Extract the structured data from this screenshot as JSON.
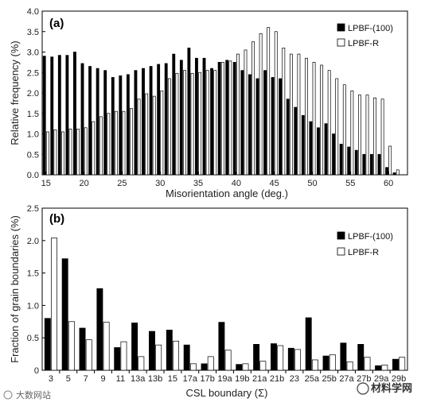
{
  "chart_data": [
    {
      "type": "bar",
      "panel_label": "(a)",
      "xlabel": "Misorientation angle (deg.)",
      "ylabel": "Relative frequency (%)",
      "xlim": [
        14.5,
        62.5
      ],
      "ylim": [
        0,
        4.0
      ],
      "x_ticks": [
        15,
        20,
        25,
        30,
        35,
        40,
        45,
        50,
        55,
        60
      ],
      "y_ticks": [
        "0.0",
        "0.5",
        "1.0",
        "1.5",
        "2.0",
        "2.5",
        "3.0",
        "3.5",
        "4.0"
      ],
      "x": [
        15,
        16,
        17,
        18,
        19,
        20,
        21,
        22,
        23,
        24,
        25,
        26,
        27,
        28,
        29,
        30,
        31,
        32,
        33,
        34,
        35,
        36,
        37,
        38,
        39,
        40,
        41,
        42,
        43,
        44,
        45,
        46,
        47,
        48,
        49,
        50,
        51,
        52,
        53,
        54,
        55,
        56,
        57,
        58,
        59,
        60,
        61,
        62
      ],
      "legend_position": "top-right",
      "series": [
        {
          "name": "LPBF-(100)",
          "color": "#000000",
          "values": [
            2.9,
            2.88,
            2.92,
            2.92,
            3.0,
            2.72,
            2.65,
            2.6,
            2.55,
            2.38,
            2.42,
            2.45,
            2.55,
            2.6,
            2.65,
            2.7,
            2.72,
            2.95,
            2.8,
            3.1,
            2.85,
            2.85,
            2.6,
            2.75,
            2.8,
            2.75,
            2.55,
            2.45,
            2.35,
            2.55,
            2.38,
            2.35,
            1.85,
            1.65,
            1.45,
            1.3,
            1.15,
            1.25,
            1.0,
            0.75,
            0.68,
            0.6,
            0.5,
            0.5,
            0.5,
            0.18,
            0.05,
            0.0
          ]
        },
        {
          "name": "LPBF-R",
          "color": "#ffffff",
          "values": [
            1.05,
            1.1,
            1.05,
            1.12,
            1.12,
            1.15,
            1.3,
            1.42,
            1.5,
            1.55,
            1.55,
            1.62,
            1.85,
            1.98,
            1.92,
            2.05,
            2.35,
            2.48,
            2.55,
            2.48,
            2.5,
            2.55,
            2.55,
            2.75,
            2.78,
            2.95,
            3.05,
            3.25,
            3.45,
            3.6,
            3.5,
            3.1,
            2.95,
            2.95,
            2.85,
            2.75,
            2.68,
            2.55,
            2.35,
            2.2,
            2.05,
            1.95,
            1.95,
            1.88,
            1.85,
            0.7,
            0.12,
            0.0
          ]
        }
      ]
    },
    {
      "type": "bar",
      "panel_label": "(b)",
      "xlabel": "CSL boundary (Σ)",
      "ylabel": "Fraction of grain boundaries (%)",
      "ylim": [
        0,
        2.5
      ],
      "y_ticks": [
        "0",
        "0.5",
        "1.0",
        "1.5",
        "2.0",
        "2.5"
      ],
      "categories": [
        "3",
        "5",
        "7",
        "9",
        "11",
        "13a",
        "13b",
        "15",
        "17a",
        "17b",
        "19a",
        "19b",
        "21a",
        "21b",
        "23",
        "25a",
        "25b",
        "27a",
        "27b",
        "29a",
        "29b"
      ],
      "legend_position": "top-right",
      "series": [
        {
          "name": "LPBF-(100)",
          "color": "#000000",
          "values": [
            0.8,
            1.72,
            0.65,
            1.26,
            0.35,
            0.73,
            0.6,
            0.62,
            0.39,
            0.1,
            0.74,
            0.09,
            0.4,
            0.41,
            0.34,
            0.81,
            0.22,
            0.42,
            0.4,
            0.07,
            0.17
          ]
        },
        {
          "name": "LPBF-R",
          "color": "#ffffff",
          "values": [
            2.04,
            0.75,
            0.47,
            0.74,
            0.44,
            0.21,
            0.39,
            0.45,
            0.1,
            0.21,
            0.31,
            0.1,
            0.14,
            0.38,
            0.32,
            0.16,
            0.24,
            0.13,
            0.2,
            0.08,
            0.2
          ]
        }
      ]
    }
  ],
  "watermarks": {
    "left": "大数网站",
    "right": "材料学网"
  }
}
